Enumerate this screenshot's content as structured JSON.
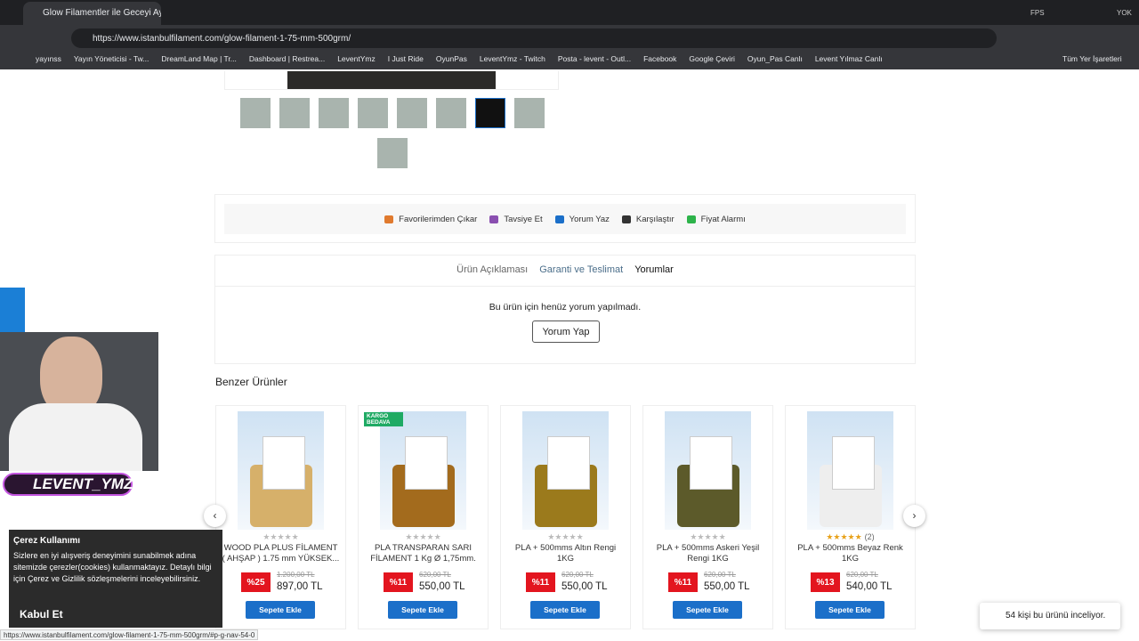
{
  "browser": {
    "tab_title": "Glow Filamentler ile Geceyi Ayd",
    "fps": "FPS",
    "yok": "YOK",
    "url": "https://www.istanbulfilament.com/glow-filament-1-75-mm-500grm/",
    "bookmarks": [
      "yayınss",
      "Yayın Yöneticisi - Tw...",
      "DreamLand Map | Tr...",
      "Dashboard | Restrea...",
      "LeventYmz",
      "I Just Ride",
      "OyunPas",
      "LeventYmz - Twitch",
      "Posta - levent - Outl...",
      "Facebook",
      "Google Çeviri",
      "Oyun_Pas Canlı",
      "Levent Yılmaz Canlı"
    ],
    "all_bookmarks": "Tüm Yer İşaretleri",
    "status_url": "https://www.istanbulfilament.com/glow-filament-1-75-mm-500grm/#p-g-nav-54-0"
  },
  "actions": [
    "Favorilerimden Çıkar",
    "Tavsiye Et",
    "Yorum Yaz",
    "Karşılaştır",
    "Fiyat Alarmı"
  ],
  "tabs": [
    "Ürün Açıklaması",
    "Garanti ve Teslimat",
    "Yorumlar"
  ],
  "reviews": {
    "empty_text": "Bu ürün için henüz yorum yapılmadı.",
    "button": "Yorum Yap"
  },
  "similar": {
    "title": "Benzer Ürünler",
    "button": "Sepete Ekle",
    "products": [
      {
        "name": "WOOD PLA PLUS FİLAMENT ( AHŞAP ) 1.75 mm YÜKSEK...",
        "old_price": "1.200,00 TL",
        "discount": "%25",
        "price": "897,00 TL"
      },
      {
        "badge": "KARGO BEDAVA",
        "name": "PLA TRANSPARAN SARI FİLAMENT 1 Kg Ø 1,75mm.",
        "old_price": "620,00 TL",
        "discount": "%11",
        "price": "550,00 TL"
      },
      {
        "name": "PLA + 500mms Altın Rengi 1KG",
        "old_price": "620,00 TL",
        "discount": "%11",
        "price": "550,00 TL"
      },
      {
        "name": "PLA + 500mms Askeri Yeşil Rengi 1KG",
        "old_price": "620,00 TL",
        "discount": "%11",
        "price": "550,00 TL"
      },
      {
        "name": "PLA + 500mms Beyaz Renk 1KG",
        "rating_count": "(2)",
        "old_price": "620,00 TL",
        "discount": "%13",
        "price": "540,00 TL"
      }
    ]
  },
  "cookie": {
    "title": "Çerez Kullanımı",
    "text": "Sizlere en iyi alışveriş deneyimini sunabilmek adına sitemizde çerezler(cookies) kullanmaktayız. Detaylı bilgi için Çerez ve Gizlilik sözleşmelerini inceleyebilirsiniz.",
    "button": "Kabul Et"
  },
  "overlay": {
    "handle": "LEVENT_YMZ"
  },
  "viewers": "54 kişi bu ürünü inceliyor."
}
